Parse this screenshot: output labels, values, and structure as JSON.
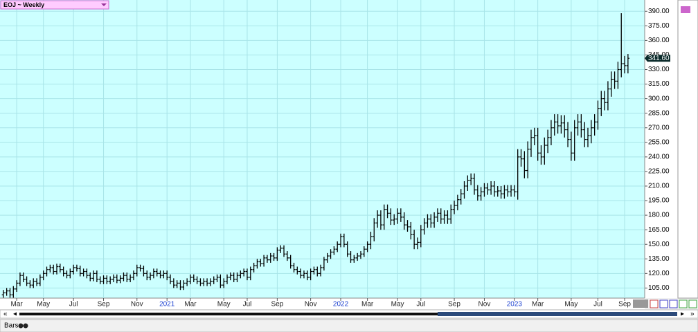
{
  "chart_data": {
    "type": "ohlc",
    "title": "EOJ ~ Weekly",
    "color": "#000000",
    "background": "#ccffff",
    "grid": true,
    "grid_color": "#a8e4e8",
    "last_price_label": "341.60",
    "study_label": "Bars",
    "xlim": [
      -1,
      192
    ],
    "xticks": [
      {
        "value": 4,
        "label": "Mar"
      },
      {
        "value": 12,
        "label": "May"
      },
      {
        "value": 21,
        "label": "Jul"
      },
      {
        "value": 30,
        "label": "Sep"
      },
      {
        "value": 40,
        "label": "Nov"
      },
      {
        "value": 49,
        "label": "2021"
      },
      {
        "value": 56,
        "label": "Mar"
      },
      {
        "value": 66,
        "label": "May"
      },
      {
        "value": 73,
        "label": "Jul"
      },
      {
        "value": 82,
        "label": "Sep"
      },
      {
        "value": 92,
        "label": "Nov"
      },
      {
        "value": 101,
        "label": "2022"
      },
      {
        "value": 109,
        "label": "Mar"
      },
      {
        "value": 118,
        "label": "May"
      },
      {
        "value": 125,
        "label": "Jul"
      },
      {
        "value": 135,
        "label": "Sep"
      },
      {
        "value": 144,
        "label": "Nov"
      },
      {
        "value": 153,
        "label": "2023"
      },
      {
        "value": 160,
        "label": "Mar"
      },
      {
        "value": 170,
        "label": "May"
      },
      {
        "value": 178,
        "label": "Jul"
      },
      {
        "value": 186,
        "label": "Sep"
      }
    ],
    "ylim": [
      94.6,
      401.6
    ],
    "yticks": [
      {
        "value": 105,
        "label": "105.00"
      },
      {
        "value": 120,
        "label": "120.00"
      },
      {
        "value": 135,
        "label": "135.00"
      },
      {
        "value": 150,
        "label": "150.00"
      },
      {
        "value": 165,
        "label": "165.00"
      },
      {
        "value": 180,
        "label": "180.00"
      },
      {
        "value": 195,
        "label": "195.00"
      },
      {
        "value": 210,
        "label": "210.00"
      },
      {
        "value": 225,
        "label": "225.00"
      },
      {
        "value": 240,
        "label": "240.00"
      },
      {
        "value": 255,
        "label": "255.00"
      },
      {
        "value": 270,
        "label": "270.00"
      },
      {
        "value": 285,
        "label": "285.00"
      },
      {
        "value": 300,
        "label": "300.00"
      },
      {
        "value": 315,
        "label": "315.00"
      },
      {
        "value": 330,
        "label": "330.00"
      },
      {
        "value": 345,
        "label": "345.00"
      },
      {
        "value": 360,
        "label": "360.00"
      },
      {
        "value": 375,
        "label": "375.00"
      },
      {
        "value": 390,
        "label": "390.00"
      }
    ],
    "open": [
      98,
      100,
      102,
      98,
      104,
      110,
      118,
      114,
      110,
      108,
      112,
      110,
      116,
      120,
      124,
      126,
      122,
      127,
      124,
      120,
      118,
      122,
      126,
      125,
      120,
      122,
      118,
      115,
      120,
      114,
      112,
      115,
      112,
      114,
      116,
      113,
      115,
      118,
      114,
      116,
      120,
      126,
      125,
      120,
      116,
      118,
      122,
      120,
      118,
      120,
      116,
      112,
      108,
      110,
      106,
      110,
      112,
      116,
      114,
      112,
      110,
      112,
      110,
      112,
      114,
      116,
      108,
      112,
      116,
      118,
      114,
      118,
      120,
      122,
      116,
      124,
      128,
      132,
      130,
      136,
      134,
      138,
      136,
      144,
      146,
      140,
      136,
      128,
      124,
      122,
      118,
      120,
      116,
      122,
      124,
      120,
      126,
      134,
      138,
      142,
      145,
      150,
      158,
      150,
      140,
      134,
      136,
      138,
      140,
      145,
      150,
      158,
      172,
      180,
      170,
      186,
      182,
      175,
      176,
      182,
      178,
      170,
      168,
      160,
      150,
      152,
      165,
      172,
      176,
      172,
      178,
      182,
      176,
      180,
      176,
      186,
      190,
      196,
      202,
      210,
      216,
      218,
      206,
      200,
      204,
      208,
      206,
      210,
      204,
      205,
      202,
      206,
      204,
      206,
      204,
      240,
      238,
      226,
      248,
      260,
      262,
      244,
      240,
      252,
      260,
      270,
      276,
      272,
      275,
      268,
      258,
      244,
      270,
      276,
      268,
      258,
      262,
      270,
      276,
      290,
      300,
      296,
      310,
      320,
      318,
      330,
      336,
      334
    ],
    "high": [
      103,
      105,
      105,
      107,
      113,
      121,
      121,
      117,
      113,
      115,
      115,
      119,
      123,
      127,
      129,
      129,
      130,
      130,
      127,
      123,
      125,
      129,
      129,
      128,
      125,
      125,
      121,
      123,
      123,
      117,
      118,
      118,
      117,
      119,
      119,
      118,
      121,
      121,
      119,
      123,
      129,
      129,
      128,
      123,
      121,
      125,
      125,
      123,
      123,
      123,
      119,
      115,
      113,
      113,
      113,
      115,
      119,
      119,
      117,
      115,
      115,
      115,
      115,
      117,
      119,
      119,
      115,
      119,
      121,
      121,
      121,
      123,
      125,
      125,
      127,
      131,
      135,
      135,
      139,
      139,
      141,
      141,
      147,
      149,
      149,
      143,
      139,
      131,
      127,
      125,
      123,
      123,
      125,
      127,
      127,
      129,
      137,
      141,
      145,
      148,
      153,
      161,
      161,
      153,
      143,
      139,
      141,
      143,
      148,
      153,
      163,
      177,
      185,
      185,
      191,
      191,
      187,
      181,
      187,
      187,
      183,
      175,
      173,
      165,
      157,
      170,
      177,
      181,
      181,
      183,
      187,
      187,
      185,
      185,
      191,
      195,
      201,
      207,
      215,
      221,
      223,
      223,
      211,
      209,
      213,
      213,
      215,
      215,
      210,
      210,
      211,
      211,
      211,
      211,
      248,
      248,
      246,
      256,
      268,
      270,
      270,
      252,
      260,
      268,
      278,
      284,
      284,
      283,
      283,
      276,
      266,
      278,
      284,
      284,
      276,
      270,
      278,
      284,
      298,
      308,
      308,
      318,
      328,
      328,
      338,
      388,
      344,
      346
    ],
    "low": [
      95,
      97,
      95,
      95,
      101,
      107,
      111,
      107,
      105,
      105,
      107,
      107,
      113,
      117,
      121,
      119,
      119,
      121,
      117,
      115,
      115,
      119,
      122,
      117,
      117,
      115,
      112,
      112,
      111,
      109,
      109,
      109,
      109,
      111,
      110,
      110,
      112,
      111,
      111,
      113,
      117,
      122,
      117,
      113,
      113,
      115,
      117,
      115,
      115,
      113,
      109,
      105,
      105,
      103,
      103,
      107,
      109,
      111,
      109,
      107,
      107,
      107,
      107,
      109,
      111,
      105,
      105,
      109,
      113,
      111,
      111,
      115,
      117,
      113,
      113,
      121,
      125,
      127,
      127,
      131,
      131,
      133,
      133,
      141,
      137,
      133,
      125,
      121,
      119,
      115,
      115,
      113,
      113,
      119,
      117,
      117,
      123,
      131,
      135,
      139,
      142,
      147,
      147,
      137,
      131,
      131,
      133,
      135,
      137,
      142,
      145,
      153,
      167,
      165,
      165,
      177,
      170,
      170,
      171,
      173,
      165,
      163,
      155,
      145,
      145,
      147,
      160,
      167,
      167,
      167,
      173,
      171,
      171,
      171,
      171,
      181,
      185,
      191,
      197,
      205,
      211,
      201,
      195,
      195,
      199,
      201,
      201,
      199,
      199,
      197,
      197,
      199,
      199,
      199,
      196,
      230,
      218,
      218,
      240,
      252,
      236,
      232,
      232,
      244,
      252,
      262,
      264,
      264,
      260,
      250,
      236,
      236,
      262,
      260,
      250,
      250,
      254,
      262,
      268,
      282,
      288,
      288,
      302,
      310,
      310,
      322,
      326,
      326
    ],
    "close": [
      100,
      102,
      98,
      104,
      110,
      118,
      114,
      110,
      108,
      112,
      110,
      116,
      120,
      124,
      126,
      122,
      127,
      124,
      120,
      118,
      122,
      126,
      125,
      120,
      122,
      118,
      115,
      120,
      114,
      112,
      115,
      112,
      114,
      116,
      113,
      115,
      118,
      114,
      116,
      120,
      126,
      125,
      120,
      116,
      118,
      122,
      120,
      118,
      120,
      116,
      112,
      108,
      110,
      106,
      110,
      112,
      116,
      114,
      112,
      110,
      112,
      110,
      112,
      114,
      116,
      108,
      112,
      116,
      118,
      114,
      118,
      120,
      122,
      116,
      124,
      128,
      132,
      130,
      136,
      134,
      138,
      136,
      144,
      146,
      140,
      136,
      128,
      124,
      122,
      118,
      120,
      116,
      122,
      124,
      120,
      126,
      134,
      138,
      142,
      145,
      150,
      158,
      150,
      140,
      134,
      136,
      138,
      140,
      145,
      150,
      158,
      172,
      180,
      170,
      186,
      182,
      175,
      176,
      182,
      178,
      170,
      168,
      160,
      150,
      152,
      165,
      172,
      176,
      172,
      178,
      182,
      176,
      180,
      176,
      186,
      190,
      196,
      202,
      210,
      216,
      218,
      206,
      200,
      204,
      208,
      206,
      210,
      204,
      205,
      202,
      206,
      204,
      206,
      204,
      240,
      238,
      226,
      248,
      260,
      262,
      244,
      240,
      252,
      260,
      270,
      276,
      272,
      275,
      268,
      258,
      244,
      270,
      276,
      268,
      258,
      262,
      270,
      276,
      290,
      300,
      296,
      310,
      320,
      318,
      330,
      336,
      334,
      341.6
    ]
  }
}
